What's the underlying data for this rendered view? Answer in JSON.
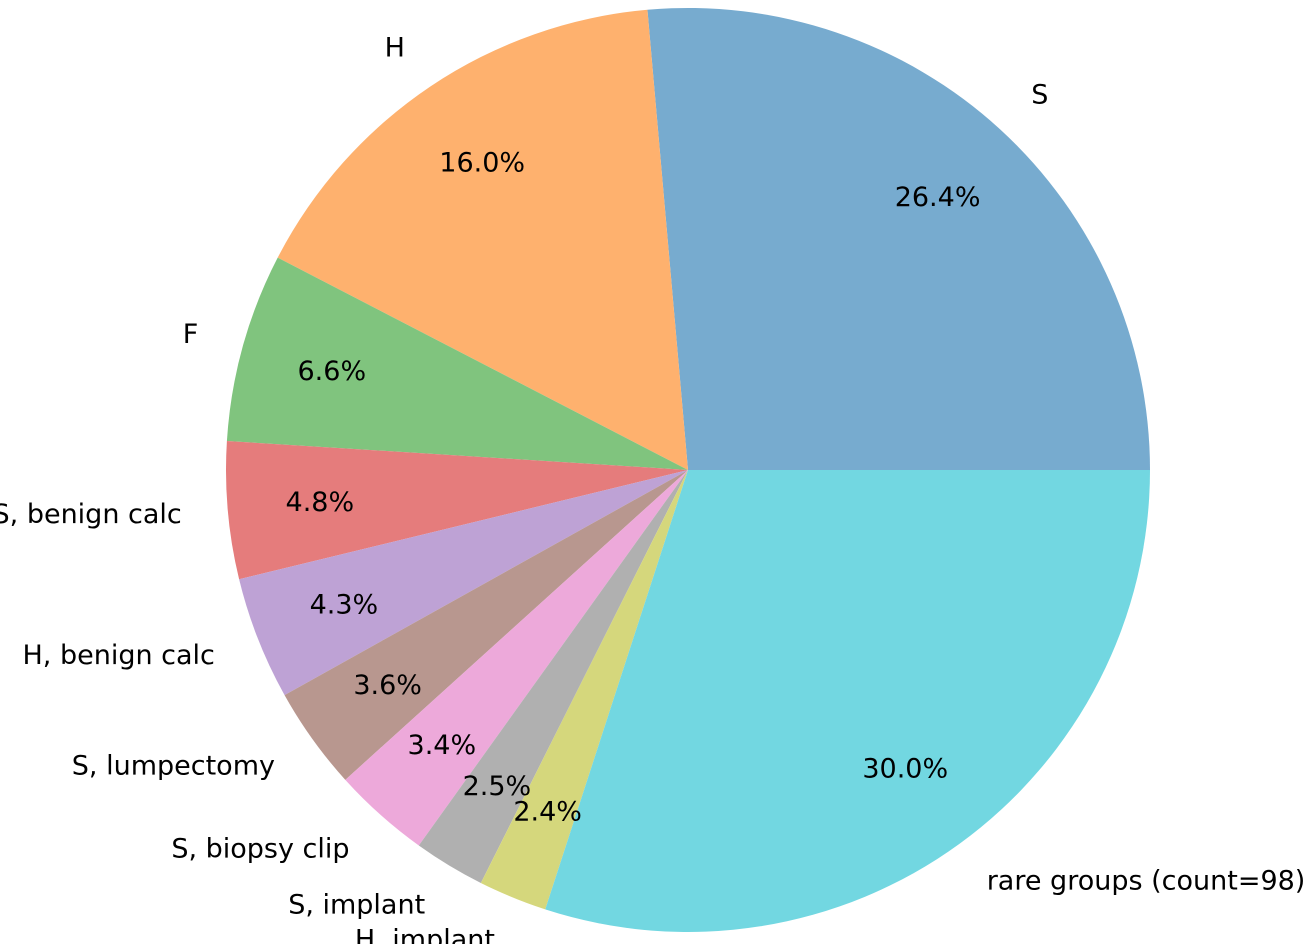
{
  "chart_data": {
    "type": "pie",
    "start_angle_deg": 0,
    "direction": "counterclockwise",
    "slices": [
      {
        "label": "S",
        "pct_label": "26.4%",
        "value": 26.4,
        "color": "#77abcf"
      },
      {
        "label": "H",
        "pct_label": "16.0%",
        "value": 16.0,
        "color": "#feb16e"
      },
      {
        "label": "F",
        "pct_label": "6.6%",
        "value": 6.6,
        "color": "#80c47e"
      },
      {
        "label": "S, benign calc",
        "pct_label": "4.8%",
        "value": 4.8,
        "color": "#e57c7c"
      },
      {
        "label": "H, benign calc",
        "pct_label": "4.3%",
        "value": 4.3,
        "color": "#bea2d5"
      },
      {
        "label": "S, lumpectomy",
        "pct_label": "3.6%",
        "value": 3.6,
        "color": "#b8978f"
      },
      {
        "label": "S, biopsy clip",
        "pct_label": "3.4%",
        "value": 3.4,
        "color": "#eda9da"
      },
      {
        "label": "S, implant",
        "pct_label": "2.5%",
        "value": 2.5,
        "color": "#b0b0b0"
      },
      {
        "label": "H, implant",
        "pct_label": "2.4%",
        "value": 2.4,
        "color": "#d5d77c"
      },
      {
        "label": "rare groups (count=98)",
        "pct_label": "30.0%",
        "value": 30.0,
        "color": "#72d7e1"
      }
    ]
  }
}
